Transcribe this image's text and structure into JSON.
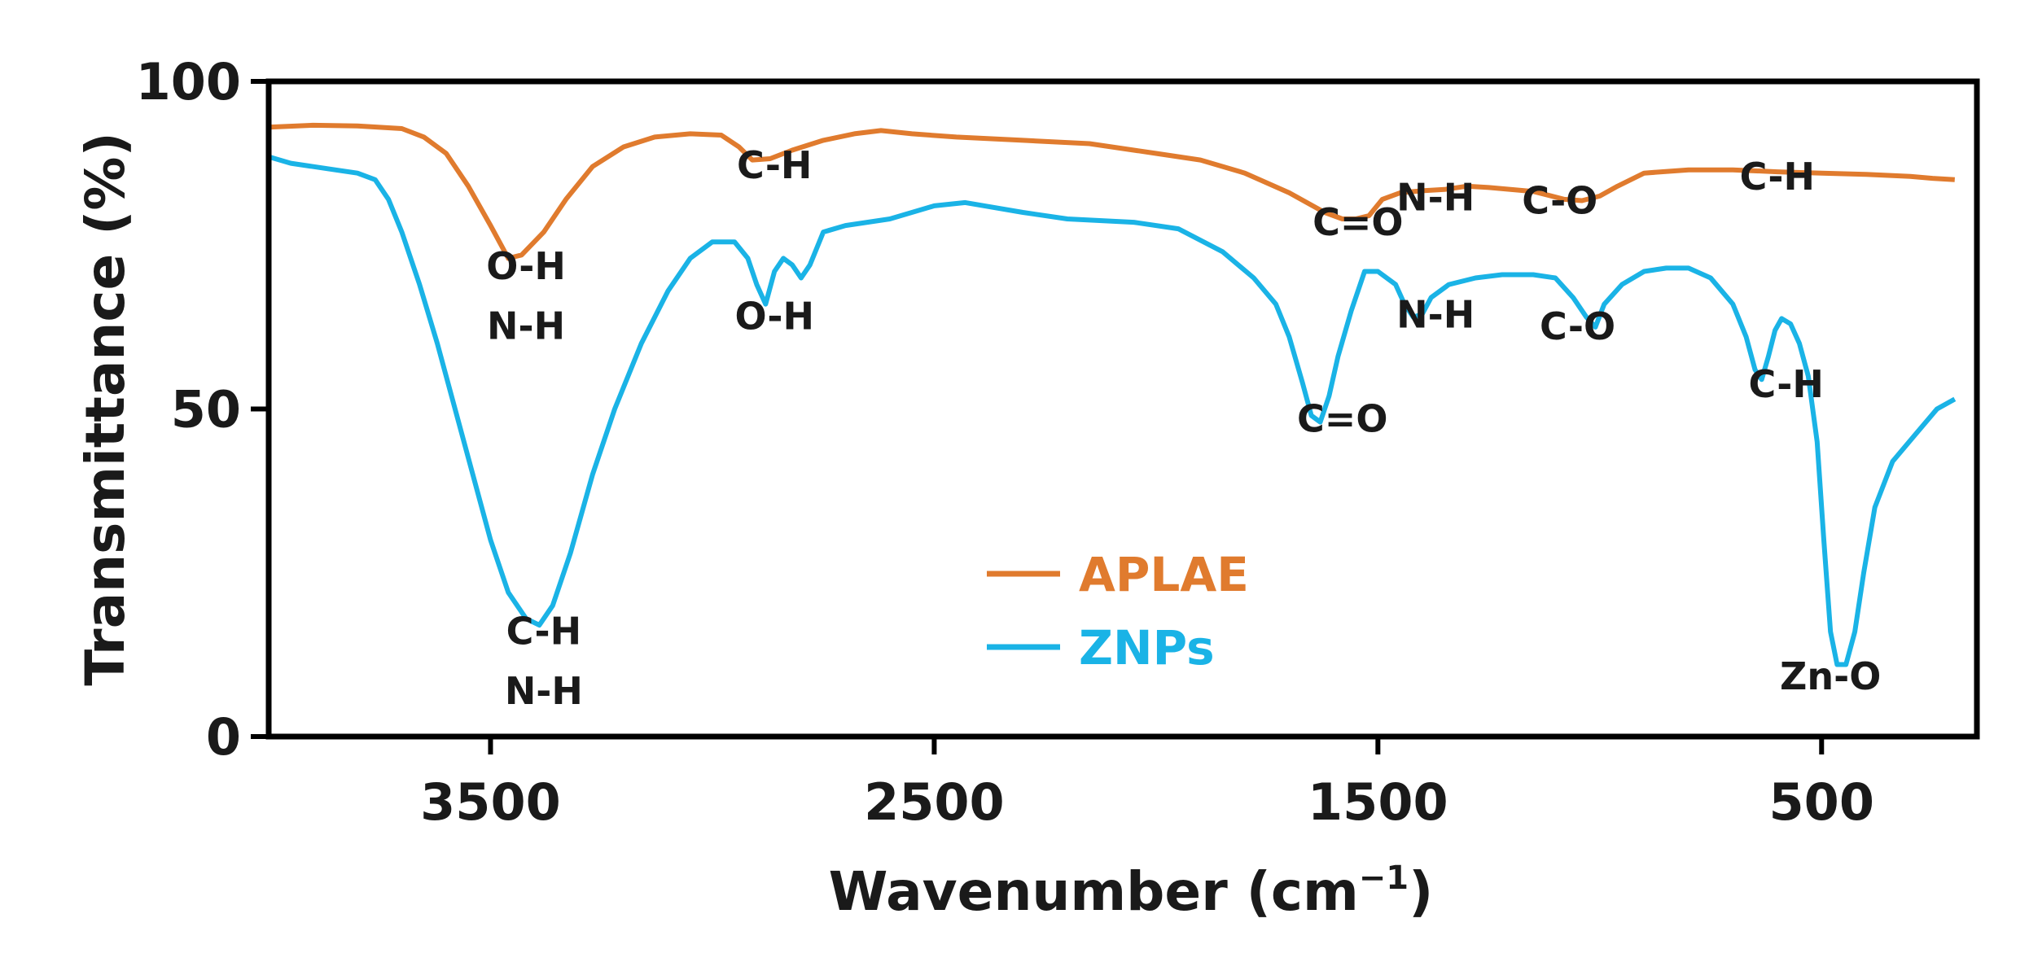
{
  "chart_data": {
    "type": "line",
    "xlabel": "Wavenumber (cm",
    "xlabel_sup": "−1",
    "xlabel_close": ")",
    "ylabel": "Transmittance (%)",
    "xlim": [
      4000,
      150
    ],
    "ylim": [
      0,
      100
    ],
    "x_ticks": [
      3500,
      2500,
      1500,
      500
    ],
    "y_ticks": [
      0,
      50,
      100
    ],
    "grid": false,
    "legend_position": "center",
    "series": [
      {
        "name": "APLAE",
        "color": "#e07b2e",
        "points": [
          [
            4000,
            93
          ],
          [
            3900,
            93.3
          ],
          [
            3800,
            93.2
          ],
          [
            3700,
            92.8
          ],
          [
            3650,
            91.5
          ],
          [
            3600,
            89
          ],
          [
            3550,
            84
          ],
          [
            3500,
            78
          ],
          [
            3460,
            73
          ],
          [
            3430,
            73.5
          ],
          [
            3380,
            77
          ],
          [
            3330,
            82
          ],
          [
            3270,
            87
          ],
          [
            3200,
            90
          ],
          [
            3130,
            91.5
          ],
          [
            3050,
            92
          ],
          [
            2980,
            91.8
          ],
          [
            2940,
            90
          ],
          [
            2910,
            88
          ],
          [
            2870,
            88.2
          ],
          [
            2820,
            89.5
          ],
          [
            2750,
            91
          ],
          [
            2680,
            92
          ],
          [
            2620,
            92.5
          ],
          [
            2550,
            92
          ],
          [
            2450,
            91.5
          ],
          [
            2300,
            91
          ],
          [
            2150,
            90.5
          ],
          [
            2000,
            89
          ],
          [
            1900,
            88
          ],
          [
            1800,
            86
          ],
          [
            1700,
            83
          ],
          [
            1620,
            80
          ],
          [
            1580,
            79
          ],
          [
            1550,
            79
          ],
          [
            1520,
            79.5
          ],
          [
            1490,
            82
          ],
          [
            1450,
            83
          ],
          [
            1400,
            83.3
          ],
          [
            1350,
            83.5
          ],
          [
            1300,
            84
          ],
          [
            1250,
            83.8
          ],
          [
            1150,
            83.2
          ],
          [
            1080,
            82
          ],
          [
            1040,
            81.8
          ],
          [
            1000,
            82.5
          ],
          [
            960,
            84
          ],
          [
            900,
            86
          ],
          [
            800,
            86.5
          ],
          [
            700,
            86.5
          ],
          [
            600,
            86.2
          ],
          [
            500,
            86
          ],
          [
            400,
            85.8
          ],
          [
            300,
            85.5
          ],
          [
            250,
            85.2
          ],
          [
            200,
            85
          ]
        ]
      },
      {
        "name": "ZNPs",
        "color": "#1ab3e6",
        "points": [
          [
            4000,
            88.5
          ],
          [
            3950,
            87.5
          ],
          [
            3850,
            86.5
          ],
          [
            3800,
            86
          ],
          [
            3760,
            85
          ],
          [
            3730,
            82
          ],
          [
            3700,
            77
          ],
          [
            3660,
            69
          ],
          [
            3620,
            60
          ],
          [
            3580,
            50
          ],
          [
            3540,
            40
          ],
          [
            3500,
            30
          ],
          [
            3460,
            22
          ],
          [
            3420,
            18
          ],
          [
            3390,
            17
          ],
          [
            3360,
            20
          ],
          [
            3320,
            28
          ],
          [
            3270,
            40
          ],
          [
            3220,
            50
          ],
          [
            3160,
            60
          ],
          [
            3100,
            68
          ],
          [
            3050,
            73
          ],
          [
            3000,
            75.5
          ],
          [
            2950,
            75.5
          ],
          [
            2920,
            73
          ],
          [
            2900,
            69
          ],
          [
            2880,
            66
          ],
          [
            2860,
            71
          ],
          [
            2840,
            73
          ],
          [
            2820,
            72
          ],
          [
            2800,
            70
          ],
          [
            2780,
            72
          ],
          [
            2750,
            77
          ],
          [
            2700,
            78
          ],
          [
            2600,
            79
          ],
          [
            2500,
            81
          ],
          [
            2430,
            81.5
          ],
          [
            2300,
            80
          ],
          [
            2200,
            79
          ],
          [
            2050,
            78.5
          ],
          [
            1950,
            77.5
          ],
          [
            1850,
            74
          ],
          [
            1780,
            70
          ],
          [
            1730,
            66
          ],
          [
            1700,
            61
          ],
          [
            1670,
            54
          ],
          [
            1650,
            49
          ],
          [
            1630,
            48
          ],
          [
            1610,
            52
          ],
          [
            1590,
            58
          ],
          [
            1560,
            65
          ],
          [
            1530,
            71
          ],
          [
            1500,
            71
          ],
          [
            1460,
            69
          ],
          [
            1440,
            66
          ],
          [
            1420,
            64
          ],
          [
            1400,
            64.5
          ],
          [
            1380,
            67
          ],
          [
            1340,
            69
          ],
          [
            1280,
            70
          ],
          [
            1220,
            70.5
          ],
          [
            1150,
            70.5
          ],
          [
            1100,
            70
          ],
          [
            1060,
            67
          ],
          [
            1030,
            64
          ],
          [
            1010,
            62.5
          ],
          [
            990,
            66
          ],
          [
            950,
            69
          ],
          [
            900,
            71
          ],
          [
            850,
            71.5
          ],
          [
            800,
            71.5
          ],
          [
            750,
            70
          ],
          [
            700,
            66
          ],
          [
            670,
            61
          ],
          [
            650,
            56
          ],
          [
            635,
            54.5
          ],
          [
            620,
            58
          ],
          [
            605,
            62
          ],
          [
            590,
            63.8
          ],
          [
            570,
            63
          ],
          [
            550,
            60
          ],
          [
            530,
            55
          ],
          [
            510,
            45
          ],
          [
            495,
            30
          ],
          [
            480,
            16
          ],
          [
            465,
            11
          ],
          [
            445,
            11
          ],
          [
            425,
            16
          ],
          [
            405,
            25
          ],
          [
            380,
            35
          ],
          [
            340,
            42
          ],
          [
            290,
            46
          ],
          [
            240,
            50
          ],
          [
            200,
            51.5
          ]
        ]
      }
    ],
    "annotations": [
      {
        "text": "O-H",
        "x": 3420,
        "y": 69.8
      },
      {
        "text": "N-H",
        "x": 3420,
        "y": 60.7
      },
      {
        "text": "C-H",
        "x": 2860,
        "y": 85.2
      },
      {
        "text": "C=O",
        "x": 1545,
        "y": 76.5
      },
      {
        "text": "N-H",
        "x": 1370,
        "y": 80.3
      },
      {
        "text": "C-O",
        "x": 1090,
        "y": 79.8
      },
      {
        "text": "C-H",
        "x": 600,
        "y": 83.5
      },
      {
        "text": "O-H",
        "x": 2860,
        "y": 62.2
      },
      {
        "text": "C-H",
        "x": 3380,
        "y": 14.1
      },
      {
        "text": "N-H",
        "x": 3380,
        "y": 5.0
      },
      {
        "text": "C=O",
        "x": 1580,
        "y": 46.5
      },
      {
        "text": "N-H",
        "x": 1370,
        "y": 62.4
      },
      {
        "text": "C-O",
        "x": 1050,
        "y": 60.6
      },
      {
        "text": "C-H",
        "x": 580,
        "y": 51.8
      },
      {
        "text": "Zn-O",
        "x": 480,
        "y": 7.2
      }
    ]
  }
}
